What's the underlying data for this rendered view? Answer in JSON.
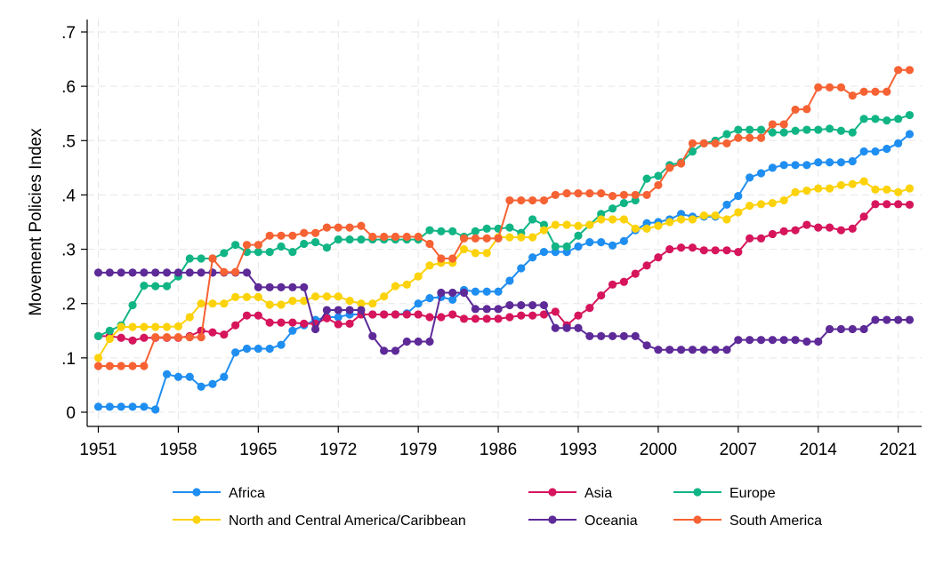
{
  "chart_data": {
    "type": "line",
    "title": "",
    "xlabel": "",
    "ylabel": "Movement Policies Index",
    "xlim": [
      1951,
      2022
    ],
    "ylim": [
      0,
      0.7
    ],
    "x_ticks": [
      1951,
      1958,
      1965,
      1972,
      1979,
      1986,
      1993,
      2000,
      2007,
      2014,
      2021
    ],
    "y_ticks": [
      0,
      0.1,
      0.2,
      0.3,
      0.4,
      0.5,
      0.6,
      0.7
    ],
    "y_tick_labels": [
      "0",
      ".1",
      ".2",
      ".3",
      ".4",
      ".5",
      ".6",
      ".7"
    ],
    "grid": true,
    "legend_position": "bottom",
    "x": [
      1951,
      1952,
      1953,
      1954,
      1955,
      1956,
      1957,
      1958,
      1959,
      1960,
      1961,
      1962,
      1963,
      1964,
      1965,
      1966,
      1967,
      1968,
      1969,
      1970,
      1971,
      1972,
      1973,
      1974,
      1975,
      1976,
      1977,
      1978,
      1979,
      1980,
      1981,
      1982,
      1983,
      1984,
      1985,
      1986,
      1987,
      1988,
      1989,
      1990,
      1991,
      1992,
      1993,
      1994,
      1995,
      1996,
      1997,
      1998,
      1999,
      2000,
      2001,
      2002,
      2003,
      2004,
      2005,
      2006,
      2007,
      2008,
      2009,
      2010,
      2011,
      2012,
      2013,
      2014,
      2015,
      2016,
      2017,
      2018,
      2019,
      2020,
      2021,
      2022
    ],
    "series": [
      {
        "name": "Africa",
        "color": "#1f8ef1",
        "values": [
          0.01,
          0.01,
          0.01,
          0.01,
          0.01,
          0.005,
          0.07,
          0.065,
          0.065,
          0.047,
          0.052,
          0.065,
          0.11,
          0.117,
          0.117,
          0.117,
          0.124,
          0.15,
          0.16,
          0.17,
          0.175,
          0.175,
          0.18,
          0.18,
          0.18,
          0.18,
          0.18,
          0.182,
          0.2,
          0.21,
          0.212,
          0.207,
          0.225,
          0.222,
          0.222,
          0.222,
          0.242,
          0.265,
          0.285,
          0.295,
          0.295,
          0.295,
          0.305,
          0.313,
          0.313,
          0.307,
          0.315,
          0.335,
          0.348,
          0.35,
          0.355,
          0.365,
          0.36,
          0.36,
          0.36,
          0.382,
          0.398,
          0.432,
          0.44,
          0.45,
          0.455,
          0.455,
          0.455,
          0.46,
          0.46,
          0.46,
          0.462,
          0.48,
          0.48,
          0.485,
          0.495,
          0.512
        ]
      },
      {
        "name": "Asia",
        "color": "#d6155c",
        "values": [
          0.14,
          0.14,
          0.137,
          0.132,
          0.137,
          0.137,
          0.137,
          0.137,
          0.14,
          0.15,
          0.147,
          0.143,
          0.16,
          0.178,
          0.178,
          0.165,
          0.165,
          0.165,
          0.163,
          0.163,
          0.173,
          0.162,
          0.163,
          0.18,
          0.18,
          0.18,
          0.18,
          0.18,
          0.18,
          0.175,
          0.175,
          0.18,
          0.172,
          0.172,
          0.172,
          0.172,
          0.175,
          0.178,
          0.178,
          0.18,
          0.185,
          0.16,
          0.178,
          0.192,
          0.215,
          0.235,
          0.24,
          0.255,
          0.27,
          0.285,
          0.3,
          0.303,
          0.303,
          0.298,
          0.298,
          0.298,
          0.295,
          0.32,
          0.32,
          0.328,
          0.333,
          0.335,
          0.345,
          0.34,
          0.34,
          0.335,
          0.338,
          0.36,
          0.383,
          0.383,
          0.383,
          0.382
        ]
      },
      {
        "name": "Europe",
        "color": "#11b585",
        "values": [
          0.14,
          0.15,
          0.16,
          0.197,
          0.233,
          0.232,
          0.232,
          0.25,
          0.283,
          0.283,
          0.283,
          0.293,
          0.308,
          0.295,
          0.295,
          0.295,
          0.305,
          0.295,
          0.31,
          0.313,
          0.303,
          0.318,
          0.318,
          0.318,
          0.318,
          0.318,
          0.318,
          0.318,
          0.318,
          0.335,
          0.333,
          0.333,
          0.323,
          0.333,
          0.338,
          0.338,
          0.34,
          0.33,
          0.355,
          0.345,
          0.305,
          0.305,
          0.325,
          0.345,
          0.365,
          0.375,
          0.385,
          0.39,
          0.43,
          0.435,
          0.455,
          0.46,
          0.48,
          0.495,
          0.5,
          0.512,
          0.52,
          0.52,
          0.52,
          0.515,
          0.515,
          0.518,
          0.52,
          0.52,
          0.522,
          0.518,
          0.515,
          0.54,
          0.54,
          0.537,
          0.54,
          0.547
        ]
      },
      {
        "name": "North and Central America/Caribbean",
        "color": "#fcd20b",
        "values": [
          0.1,
          0.135,
          0.157,
          0.157,
          0.157,
          0.157,
          0.157,
          0.158,
          0.175,
          0.2,
          0.2,
          0.2,
          0.212,
          0.212,
          0.212,
          0.198,
          0.198,
          0.205,
          0.205,
          0.213,
          0.213,
          0.213,
          0.205,
          0.2,
          0.2,
          0.213,
          0.232,
          0.235,
          0.25,
          0.27,
          0.275,
          0.275,
          0.3,
          0.293,
          0.293,
          0.322,
          0.322,
          0.322,
          0.322,
          0.335,
          0.345,
          0.345,
          0.343,
          0.345,
          0.355,
          0.355,
          0.355,
          0.338,
          0.338,
          0.343,
          0.35,
          0.355,
          0.355,
          0.362,
          0.362,
          0.355,
          0.368,
          0.38,
          0.383,
          0.385,
          0.39,
          0.405,
          0.408,
          0.412,
          0.412,
          0.418,
          0.42,
          0.425,
          0.41,
          0.41,
          0.405,
          0.412
        ]
      },
      {
        "name": "Oceania",
        "color": "#5d2a98",
        "values": [
          0.257,
          0.257,
          0.257,
          0.257,
          0.257,
          0.257,
          0.257,
          0.257,
          0.257,
          0.257,
          0.257,
          0.257,
          0.257,
          0.257,
          0.23,
          0.23,
          0.23,
          0.23,
          0.23,
          0.153,
          0.188,
          0.188,
          0.188,
          0.188,
          0.14,
          0.113,
          0.113,
          0.13,
          0.13,
          0.13,
          0.22,
          0.22,
          0.22,
          0.19,
          0.19,
          0.19,
          0.197,
          0.197,
          0.197,
          0.197,
          0.155,
          0.155,
          0.155,
          0.14,
          0.14,
          0.14,
          0.14,
          0.14,
          0.123,
          0.115,
          0.115,
          0.115,
          0.115,
          0.115,
          0.115,
          0.115,
          0.133,
          0.133,
          0.133,
          0.133,
          0.133,
          0.133,
          0.13,
          0.13,
          0.153,
          0.153,
          0.153,
          0.153,
          0.17,
          0.17,
          0.17,
          0.17
        ]
      },
      {
        "name": "South America",
        "color": "#f66233",
        "values": [
          0.085,
          0.085,
          0.085,
          0.085,
          0.085,
          0.138,
          0.138,
          0.138,
          0.138,
          0.138,
          0.283,
          0.258,
          0.258,
          0.308,
          0.308,
          0.325,
          0.325,
          0.325,
          0.33,
          0.33,
          0.34,
          0.34,
          0.34,
          0.343,
          0.323,
          0.323,
          0.323,
          0.323,
          0.323,
          0.31,
          0.283,
          0.283,
          0.32,
          0.32,
          0.32,
          0.32,
          0.39,
          0.39,
          0.39,
          0.39,
          0.4,
          0.403,
          0.403,
          0.403,
          0.403,
          0.398,
          0.4,
          0.4,
          0.4,
          0.418,
          0.45,
          0.458,
          0.495,
          0.495,
          0.495,
          0.495,
          0.505,
          0.505,
          0.505,
          0.53,
          0.53,
          0.557,
          0.558,
          0.598,
          0.598,
          0.598,
          0.583,
          0.59,
          0.59,
          0.59,
          0.63,
          0.63
        ]
      }
    ],
    "legend_layout": [
      [
        "Africa",
        "Asia",
        "Europe"
      ],
      [
        "North and Central America/Caribbean",
        "Oceania",
        "South America"
      ]
    ]
  }
}
